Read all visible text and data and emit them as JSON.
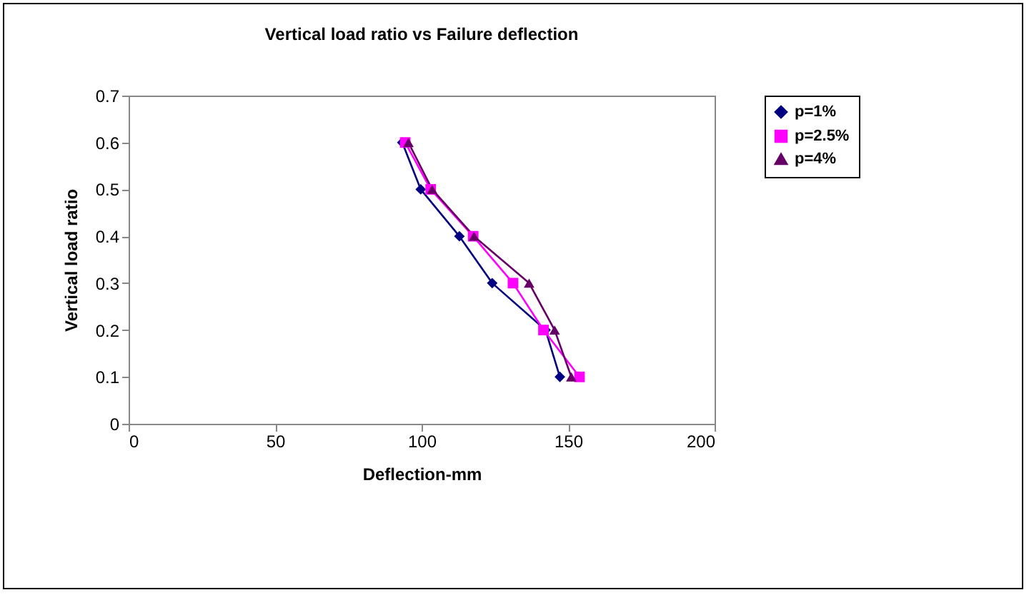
{
  "chart_data": {
    "type": "line",
    "title": "Vertical load ratio vs Failure deflection",
    "xlabel": "Deflection-mm",
    "ylabel": "Vertical load ratio",
    "series": [
      {
        "name": "p=1%",
        "color": "#000080",
        "marker": "diamond",
        "x": [
          93.4,
          99.7,
          112.9,
          124.1,
          142.3,
          147.2
        ],
        "values": [
          0.6,
          0.5,
          0.4,
          0.3,
          0.2,
          0.1
        ]
      },
      {
        "name": "p=2.5%",
        "color": "#ff00ff",
        "marker": "square",
        "x": [
          94.4,
          103.1,
          117.6,
          131.2,
          141.6,
          153.9
        ],
        "values": [
          0.6,
          0.5,
          0.4,
          0.3,
          0.2,
          0.1
        ]
      },
      {
        "name": "p=4%",
        "color": "#660066",
        "marker": "triangle",
        "x": [
          95.5,
          103.6,
          117.9,
          136.7,
          145.4,
          151.1
        ],
        "values": [
          0.6,
          0.5,
          0.4,
          0.3,
          0.2,
          0.1
        ]
      }
    ],
    "xlim": [
      0,
      200
    ],
    "xticks": [
      0,
      50,
      100,
      150,
      200
    ],
    "ylim": [
      0,
      0.7
    ],
    "yticks": [
      0,
      0.1,
      0.2,
      0.3,
      0.4,
      0.5,
      0.6,
      0.7
    ],
    "grid": false,
    "legend": "right"
  }
}
